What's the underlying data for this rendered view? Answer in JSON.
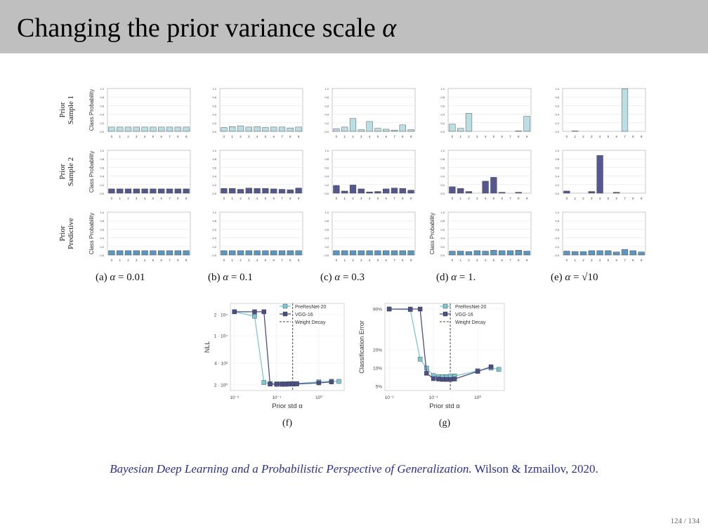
{
  "slide": {
    "title_text": "Changing the prior variance scale ",
    "title_symbol": "α",
    "citation_title": "Bayesian Deep Learning and a Probabilistic Perspective of Generalization.",
    "citation_authors": "Wilson & Izmailov, 2020.",
    "page_number": "124 / 134"
  },
  "colors": {
    "sample1": "#b9dfe4",
    "sample2": "#55578f",
    "predictive": "#5b97c1",
    "preresnet": "#7cc7d3",
    "vgg": "#4b4f86",
    "weight_decay": "#444444"
  },
  "grid_labels": {
    "rows": [
      [
        "Prior",
        "Sample 1"
      ],
      [
        "Prior",
        "Sample 2"
      ],
      [
        "Prior",
        "Predictive"
      ]
    ],
    "ylabel": "Class Probability",
    "columns": [
      {
        "prefix": "(a) ",
        "symbol": "α",
        "value": " = 0.01"
      },
      {
        "prefix": "(b) ",
        "symbol": "α",
        "value": " = 0.1"
      },
      {
        "prefix": "(c) ",
        "symbol": "α",
        "value": " = 0.3"
      },
      {
        "prefix": "(d) ",
        "symbol": "α",
        "value": " = 1."
      },
      {
        "prefix": "(e) ",
        "symbol": "α",
        "value": " = √10"
      }
    ],
    "yticks": [
      "0.0",
      "0.2",
      "0.4",
      "0.6",
      "0.8",
      "1.0"
    ],
    "xticks": [
      "0",
      "1",
      "2",
      "3",
      "4",
      "5",
      "6",
      "7",
      "8",
      "9"
    ]
  },
  "chart_data": [
    {
      "type": "bar",
      "panel": "(a) α = 0.01",
      "categories": [
        "0",
        "1",
        "2",
        "3",
        "4",
        "5",
        "6",
        "7",
        "8",
        "9"
      ],
      "ylabel": "Class Probability",
      "ylim": [
        0,
        1
      ],
      "series": [
        {
          "name": "Prior Sample 1",
          "values": [
            0.1,
            0.1,
            0.1,
            0.1,
            0.1,
            0.1,
            0.1,
            0.1,
            0.1,
            0.1
          ]
        },
        {
          "name": "Prior Sample 2",
          "values": [
            0.1,
            0.1,
            0.1,
            0.1,
            0.1,
            0.1,
            0.1,
            0.1,
            0.1,
            0.1
          ]
        },
        {
          "name": "Prior Predictive",
          "values": [
            0.1,
            0.1,
            0.1,
            0.1,
            0.1,
            0.1,
            0.1,
            0.1,
            0.1,
            0.1
          ]
        }
      ]
    },
    {
      "type": "bar",
      "panel": "(b) α = 0.1",
      "categories": [
        "0",
        "1",
        "2",
        "3",
        "4",
        "5",
        "6",
        "7",
        "8",
        "9"
      ],
      "ylim": [
        0,
        1
      ],
      "series": [
        {
          "name": "Prior Sample 1",
          "values": [
            0.09,
            0.11,
            0.13,
            0.1,
            0.11,
            0.09,
            0.1,
            0.1,
            0.08,
            0.1
          ]
        },
        {
          "name": "Prior Sample 2",
          "values": [
            0.11,
            0.11,
            0.09,
            0.12,
            0.11,
            0.11,
            0.1,
            0.09,
            0.08,
            0.12
          ]
        },
        {
          "name": "Prior Predictive",
          "values": [
            0.1,
            0.1,
            0.1,
            0.1,
            0.1,
            0.1,
            0.1,
            0.1,
            0.1,
            0.1
          ]
        }
      ]
    },
    {
      "type": "bar",
      "panel": "(c) α = 0.3",
      "categories": [
        "0",
        "1",
        "2",
        "3",
        "4",
        "5",
        "6",
        "7",
        "8",
        "9"
      ],
      "ylim": [
        0,
        1
      ],
      "series": [
        {
          "name": "Prior Sample 1",
          "values": [
            0.06,
            0.1,
            0.3,
            0.04,
            0.23,
            0.07,
            0.05,
            0.03,
            0.15,
            0.04
          ]
        },
        {
          "name": "Prior Sample 2",
          "values": [
            0.18,
            0.05,
            0.19,
            0.1,
            0.03,
            0.04,
            0.1,
            0.12,
            0.11,
            0.07
          ]
        },
        {
          "name": "Prior Predictive",
          "values": [
            0.1,
            0.1,
            0.1,
            0.1,
            0.1,
            0.1,
            0.1,
            0.1,
            0.1,
            0.1
          ]
        }
      ]
    },
    {
      "type": "bar",
      "panel": "(d) α = 1.",
      "categories": [
        "0",
        "1",
        "2",
        "3",
        "4",
        "5",
        "6",
        "7",
        "8",
        "9"
      ],
      "ylabel": "Class Probability",
      "ylim": [
        0,
        1
      ],
      "series": [
        {
          "name": "Prior Sample 1",
          "values": [
            0.17,
            0.07,
            0.42,
            0.0,
            0.0,
            0.0,
            0.0,
            0.0,
            0.01,
            0.35
          ]
        },
        {
          "name": "Prior Sample 2",
          "values": [
            0.15,
            0.11,
            0.04,
            0.0,
            0.28,
            0.37,
            0.02,
            0.0,
            0.02,
            0.0
          ]
        },
        {
          "name": "Prior Predictive",
          "values": [
            0.09,
            0.09,
            0.08,
            0.1,
            0.09,
            0.11,
            0.1,
            0.1,
            0.11,
            0.09
          ]
        }
      ]
    },
    {
      "type": "bar",
      "panel": "(e) α = √10",
      "categories": [
        "0",
        "1",
        "2",
        "3",
        "4",
        "5",
        "6",
        "7",
        "8",
        "9"
      ],
      "ylim": [
        0,
        1
      ],
      "series": [
        {
          "name": "Prior Sample 1",
          "values": [
            0.0,
            0.01,
            0.0,
            0.0,
            0.0,
            0.0,
            0.0,
            0.99,
            0.0,
            0.0
          ]
        },
        {
          "name": "Prior Sample 2",
          "values": [
            0.05,
            0.0,
            0.0,
            0.04,
            0.88,
            0.0,
            0.02,
            0.0,
            0.0,
            0.0
          ]
        },
        {
          "name": "Prior Predictive",
          "values": [
            0.09,
            0.08,
            0.08,
            0.1,
            0.1,
            0.1,
            0.07,
            0.13,
            0.1,
            0.07
          ]
        }
      ]
    },
    {
      "type": "line",
      "panel": "(f)",
      "xlabel": "Prior std α",
      "ylabel": "NLL",
      "xscale": "log",
      "yscale": "log",
      "xlim": [
        0.008,
        4
      ],
      "ylim": [
        1.7,
        28000
      ],
      "xticks": [
        "10⁻²",
        "10⁻¹",
        "10⁰"
      ],
      "yticks": [
        "2 · 10⁴",
        "1 · 10⁴",
        "4 · 10²",
        "2 · 10⁰"
      ],
      "ytick_values": [
        20000,
        10000,
        400,
        2
      ],
      "legend_position": "upper right",
      "series": [
        {
          "name": "PreResNet-20",
          "x": [
            0.01,
            0.03,
            0.05,
            0.07,
            0.1,
            0.13,
            0.16,
            0.2,
            0.24,
            0.3,
            1.0,
            2.0,
            3.0
          ],
          "y": [
            22000,
            19000,
            3.6,
            2.8,
            2.7,
            2.7,
            2.7,
            2.7,
            2.7,
            2.8,
            4.3,
            4.8,
            4.7
          ]
        },
        {
          "name": "VGG-16",
          "x": [
            0.01,
            0.03,
            0.05,
            0.07,
            0.1,
            0.13,
            0.16,
            0.2,
            0.24,
            0.3,
            1.0,
            2.0
          ],
          "y": [
            22000,
            22000,
            22000,
            2.4,
            2.3,
            2.3,
            2.3,
            2.4,
            2.4,
            2.5,
            3.3,
            4.1
          ]
        }
      ],
      "annotations": [
        {
          "name": "Weight Decay",
          "x": 0.24,
          "style": "dashed vertical"
        }
      ]
    },
    {
      "type": "line",
      "panel": "(g)",
      "xlabel": "Prior std α",
      "ylabel": "Classification Error",
      "xscale": "log",
      "xlim": [
        0.008,
        4
      ],
      "ylim": [
        4,
        92
      ],
      "xticks": [
        "10⁻²",
        "10⁻¹",
        "10⁰"
      ],
      "yticks": [
        "90%",
        "20%",
        "10%",
        "5%"
      ],
      "ytick_values": [
        90,
        20,
        10,
        5
      ],
      "legend_position": "upper right",
      "series": [
        {
          "name": "PreResNet-20",
          "x": [
            0.01,
            0.03,
            0.05,
            0.07,
            0.1,
            0.13,
            0.16,
            0.2,
            0.24,
            0.3,
            1.0,
            2.0,
            3.0
          ],
          "y": [
            90,
            88,
            14,
            10,
            7.5,
            7.2,
            7.2,
            7.2,
            7.3,
            7.4,
            9,
            10,
            9.5
          ]
        },
        {
          "name": "VGG-16",
          "x": [
            0.01,
            0.03,
            0.05,
            0.07,
            0.1,
            0.13,
            0.16,
            0.2,
            0.24,
            0.3,
            1.0,
            2.0
          ],
          "y": [
            90,
            90,
            90,
            8.2,
            6.7,
            6.6,
            6.5,
            6.5,
            6.5,
            6.6,
            8.8,
            10.5
          ]
        }
      ],
      "annotations": [
        {
          "name": "Weight Decay",
          "x": 0.24,
          "style": "dashed vertical"
        }
      ]
    }
  ]
}
